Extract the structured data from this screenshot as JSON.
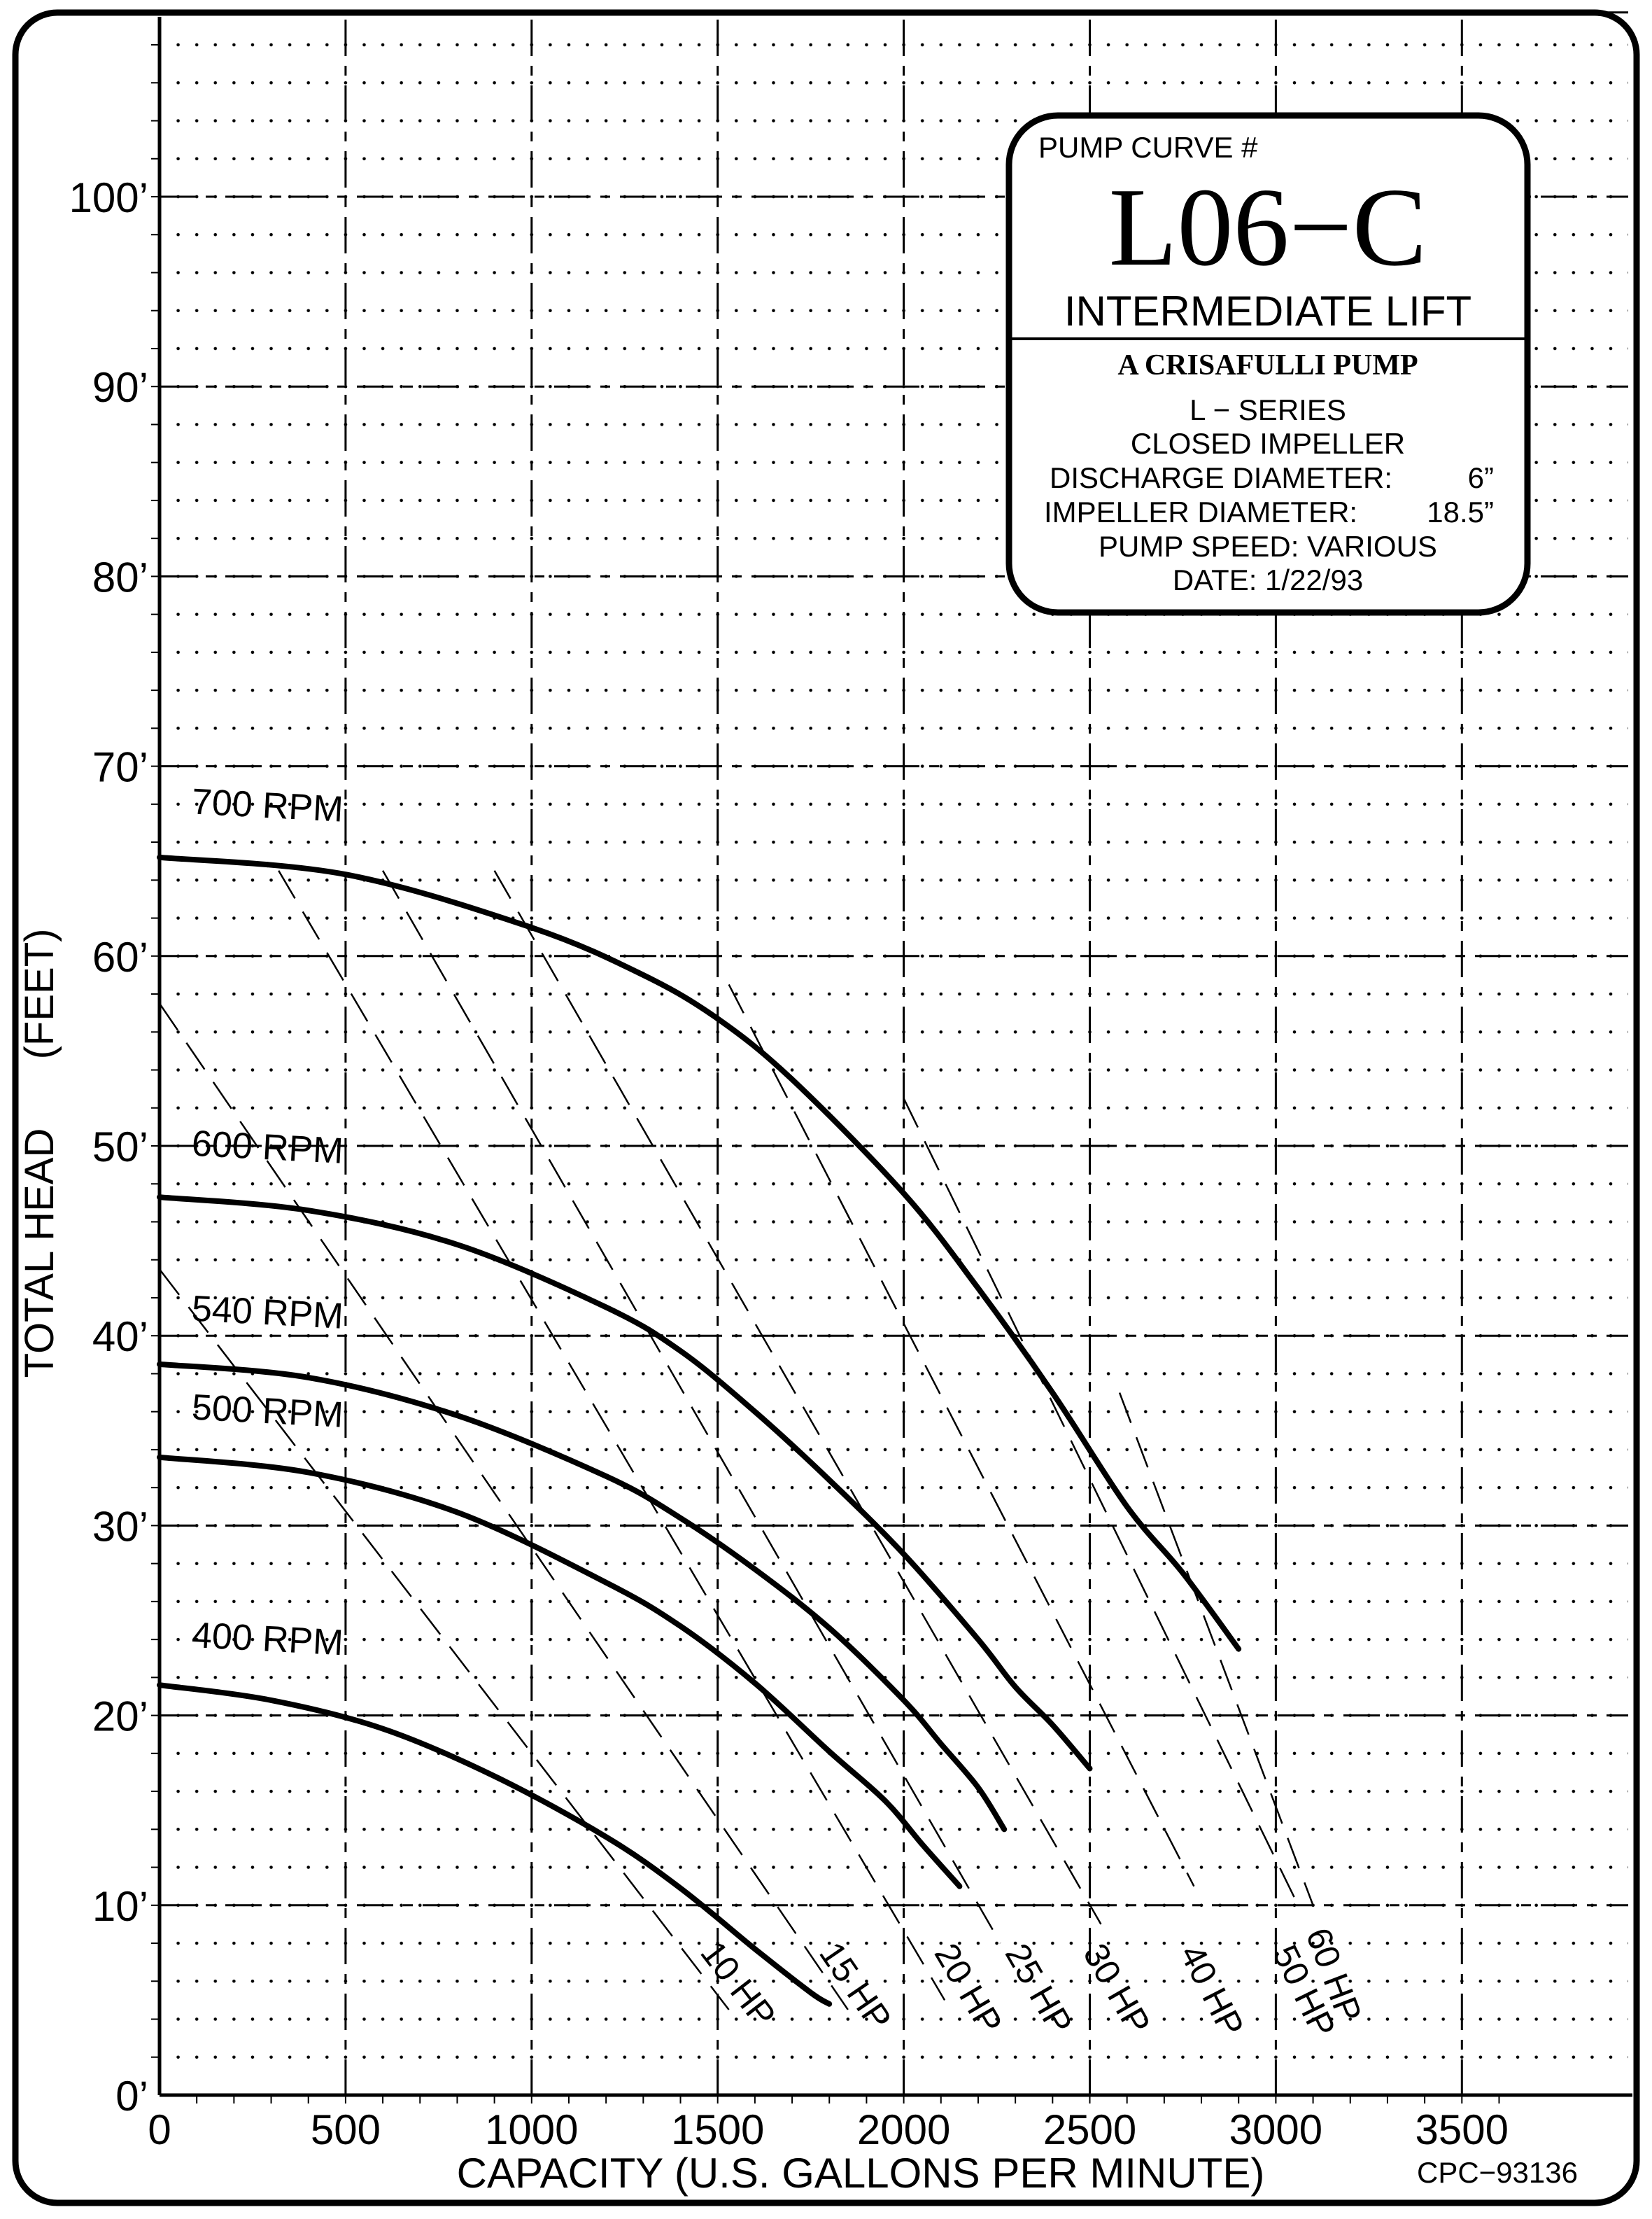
{
  "chart_data": {
    "type": "line",
    "xlabel": "CAPACITY (U.S. GALLONS PER MINUTE)",
    "ylabel": "TOTAL HEAD (FEET)",
    "xlim": [
      0,
      3700
    ],
    "ylim": [
      0,
      110
    ],
    "grid": true,
    "x_ticks": [
      {
        "value": 0,
        "label": "0"
      },
      {
        "value": 500,
        "label": "500"
      },
      {
        "value": 1000,
        "label": "1000"
      },
      {
        "value": 1500,
        "label": "1500"
      },
      {
        "value": 2000,
        "label": "2000"
      },
      {
        "value": 2500,
        "label": "2500"
      },
      {
        "value": 3000,
        "label": "3000"
      },
      {
        "value": 3500,
        "label": "3500"
      }
    ],
    "y_ticks": [
      {
        "value": 0,
        "label": "0’"
      },
      {
        "value": 10,
        "label": "10’"
      },
      {
        "value": 20,
        "label": "20’"
      },
      {
        "value": 30,
        "label": "30’"
      },
      {
        "value": 40,
        "label": "40’"
      },
      {
        "value": 50,
        "label": "50’"
      },
      {
        "value": 60,
        "label": "60’"
      },
      {
        "value": 70,
        "label": "70’"
      },
      {
        "value": 80,
        "label": "80’"
      },
      {
        "value": 90,
        "label": "90’"
      },
      {
        "value": 100,
        "label": "100’"
      }
    ],
    "series": [
      {
        "name": "700 RPM",
        "label_at": [
          85,
          67.5
        ],
        "x": [
          0,
          500,
          1000,
          1300,
          1500,
          1700,
          2000,
          2200,
          2400,
          2600,
          2750,
          2900
        ],
        "y": [
          65.2,
          64.3,
          61.5,
          59,
          56.7,
          53.5,
          47.5,
          42.5,
          37,
          31,
          27.5,
          23.5
        ]
      },
      {
        "name": "600 RPM",
        "label_at": [
          85,
          49.5
        ],
        "x": [
          0,
          400,
          800,
          1200,
          1400,
          1600,
          1800,
          2000,
          2200,
          2300,
          2400,
          2500
        ],
        "y": [
          47.3,
          46.6,
          44.8,
          41.5,
          39.2,
          36,
          32.4,
          28.5,
          24,
          21.5,
          19.5,
          17.2
        ]
      },
      {
        "name": "540 RPM",
        "label_at": [
          85,
          40.8
        ],
        "x": [
          0,
          400,
          800,
          1200,
          1400,
          1600,
          1800,
          2000,
          2100,
          2200,
          2270
        ],
        "y": [
          38.5,
          37.8,
          35.8,
          32.6,
          30.4,
          27.7,
          24.6,
          20.8,
          18.5,
          16.2,
          14
        ]
      },
      {
        "name": "500 RPM",
        "label_at": [
          85,
          35.6
        ],
        "x": [
          0,
          400,
          800,
          1200,
          1400,
          1600,
          1800,
          1950,
          2050,
          2150
        ],
        "y": [
          33.6,
          32.8,
          30.7,
          27,
          24.7,
          21.7,
          18.1,
          15.5,
          13.2,
          11
        ]
      },
      {
        "name": "400 RPM",
        "label_at": [
          85,
          23.6
        ],
        "x": [
          0,
          300,
          600,
          900,
          1200,
          1400,
          1600,
          1750,
          1800
        ],
        "y": [
          21.6,
          20.8,
          19.3,
          16.8,
          13.6,
          10.9,
          7.7,
          5.4,
          4.8
        ]
      }
    ],
    "hp_lines": [
      {
        "name": "10 HP",
        "from": [
          0,
          43.5
        ],
        "to": [
          1530,
          4.5
        ],
        "label_at": [
          1450,
          7.5
        ]
      },
      {
        "name": "15 HP",
        "from": [
          0,
          57.5
        ],
        "to": [
          1850,
          4.5
        ],
        "label_at": [
          1770,
          7.5
        ]
      },
      {
        "name": "20 HP",
        "from": [
          320,
          64.5
        ],
        "to": [
          2110,
          5
        ],
        "label_at": [
          2080,
          7.5
        ]
      },
      {
        "name": "25 HP",
        "from": [
          600,
          64.5
        ],
        "to": [
          2260,
          8
        ],
        "label_at": [
          2270,
          7.5
        ]
      },
      {
        "name": "30 HP",
        "from": [
          900,
          64.5
        ],
        "to": [
          2530,
          9
        ],
        "label_at": [
          2480,
          7.5
        ]
      },
      {
        "name": "40 HP",
        "from": [
          1530,
          58.5
        ],
        "to": [
          2780,
          11
        ],
        "label_at": [
          2740,
          7.5
        ]
      },
      {
        "name": "50 HP",
        "from": [
          2000,
          52.5
        ],
        "to": [
          3060,
          10
        ],
        "label_at": [
          2990,
          7.5
        ]
      },
      {
        "name": "60 HP",
        "from": [
          2580,
          37
        ],
        "to": [
          3100,
          10
        ],
        "label_at": [
          3080,
          8.5
        ]
      }
    ]
  },
  "info_box": {
    "heading": "PUMP CURVE #",
    "curve_id": "L06−C",
    "subtitle": "INTERMEDIATE LIFT",
    "maker": "A CRISAFULLI PUMP",
    "series": "L − SERIES",
    "impeller_type": "CLOSED IMPELLER",
    "discharge_label": "DISCHARGE DIAMETER:",
    "discharge_value": "6”",
    "impeller_label": "IMPELLER DIAMETER:",
    "impeller_value": "18.5”",
    "speed": "PUMP SPEED: VARIOUS",
    "date": "DATE: 1/22/93"
  },
  "drawing_number": "CPC−93136",
  "axis_titles": {
    "x_title": "CAPACITY (U.S. GALLONS PER MINUTE)",
    "y_title_main": "TOTAL HEAD",
    "y_title_unit": "(FEET)"
  },
  "colors": {
    "ink": "#000000",
    "paper": "#ffffff"
  }
}
